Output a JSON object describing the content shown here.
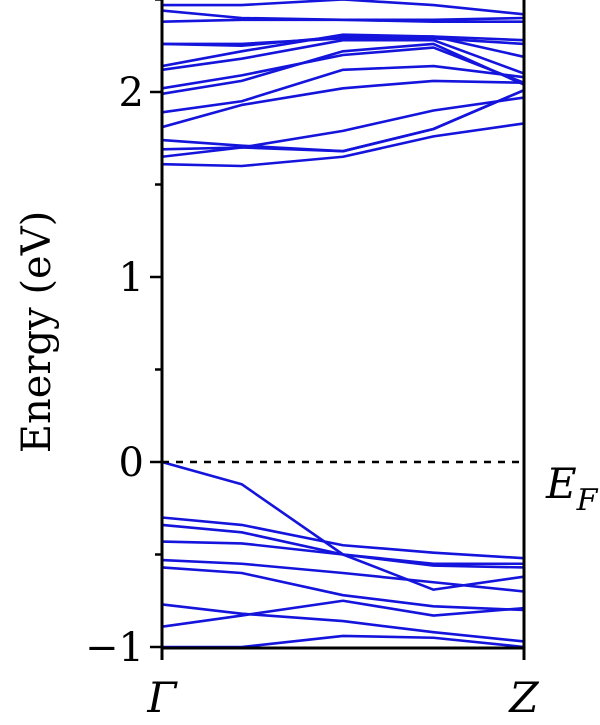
{
  "chart_data": {
    "type": "line",
    "ylabel": "Energy (eV)",
    "ylim": [
      -1,
      2.5
    ],
    "yticks": [
      -1,
      0,
      1,
      2
    ],
    "ytick_labels": [
      "−1",
      "0",
      "1",
      "2"
    ],
    "x_points": [
      0,
      0.22,
      0.5,
      0.75,
      1
    ],
    "x_high_symmetry_labels": [
      "Γ",
      "Z"
    ],
    "fermi_level": 0,
    "fermi_label": "E_F",
    "fermi_label_main": "E",
    "fermi_label_sub": "F",
    "line_color": "#1414dc",
    "series": [
      {
        "values": [
          0.0,
          -0.12,
          -0.5,
          -0.69,
          -0.62
        ]
      },
      {
        "values": [
          -0.3,
          -0.34,
          -0.45,
          -0.49,
          -0.52
        ]
      },
      {
        "values": [
          -0.34,
          -0.38,
          -0.5,
          -0.55,
          -0.55
        ]
      },
      {
        "values": [
          -0.43,
          -0.44,
          -0.5,
          -0.56,
          -0.57
        ]
      },
      {
        "values": [
          -0.53,
          -0.55,
          -0.6,
          -0.65,
          -0.7
        ]
      },
      {
        "values": [
          -0.57,
          -0.6,
          -0.72,
          -0.78,
          -0.8
        ]
      },
      {
        "values": [
          -0.77,
          -0.82,
          -0.86,
          -0.92,
          -0.97
        ]
      },
      {
        "values": [
          -0.89,
          -0.83,
          -0.75,
          -0.83,
          -0.79
        ]
      },
      {
        "values": [
          -1.0,
          -1.0,
          -0.94,
          -0.95,
          -1.0
        ]
      },
      {
        "values": [
          1.61,
          1.6,
          1.65,
          1.76,
          1.83
        ]
      },
      {
        "values": [
          1.65,
          1.7,
          1.79,
          1.9,
          1.97
        ]
      },
      {
        "values": [
          1.69,
          1.7,
          1.68,
          1.8,
          2.01
        ]
      },
      {
        "values": [
          1.74,
          1.71,
          1.68,
          1.8,
          2.01
        ]
      },
      {
        "values": [
          1.81,
          1.93,
          2.02,
          2.06,
          2.05
        ]
      },
      {
        "values": [
          1.89,
          1.95,
          2.12,
          2.14,
          2.08
        ]
      },
      {
        "values": [
          1.99,
          2.06,
          2.22,
          2.26,
          2.04
        ]
      },
      {
        "values": [
          2.02,
          2.09,
          2.2,
          2.24,
          2.05
        ]
      },
      {
        "values": [
          2.12,
          2.18,
          2.28,
          2.28,
          2.1
        ]
      },
      {
        "values": [
          2.14,
          2.22,
          2.31,
          2.3,
          2.19
        ]
      },
      {
        "values": [
          2.26,
          2.26,
          2.29,
          2.29,
          2.26
        ]
      },
      {
        "values": [
          2.26,
          2.25,
          2.3,
          2.3,
          2.28
        ]
      },
      {
        "values": [
          2.38,
          2.39,
          2.39,
          2.39,
          2.4
        ]
      },
      {
        "values": [
          2.44,
          2.4,
          2.39,
          2.38,
          2.38
        ]
      },
      {
        "values": [
          2.47,
          2.47,
          2.5,
          2.47,
          2.42
        ]
      }
    ]
  }
}
